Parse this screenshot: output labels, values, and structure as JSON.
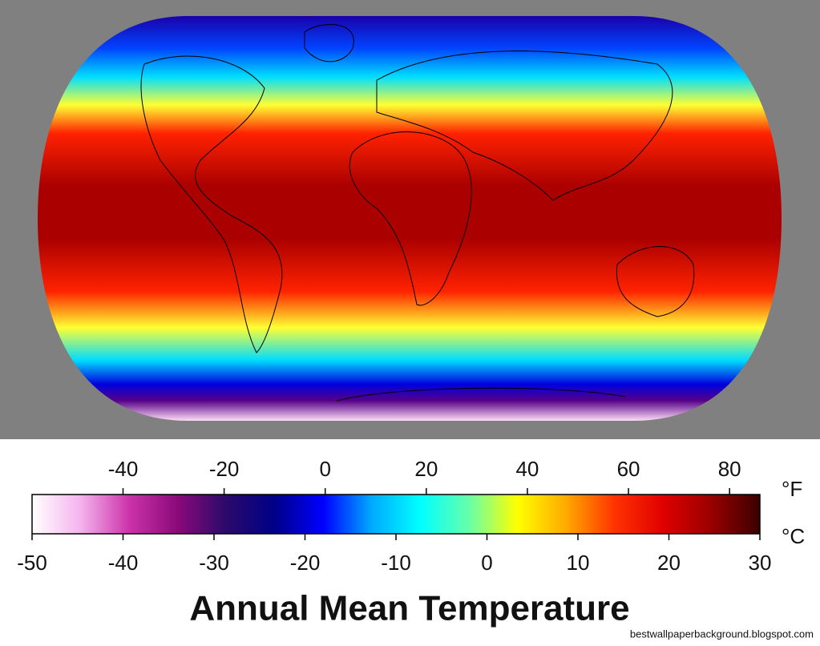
{
  "title": "Annual Mean Temperature",
  "colorbar": {
    "celsius": {
      "unit": "°C",
      "lim": [
        -50,
        30
      ],
      "ticks": [
        -50,
        -40,
        -30,
        -20,
        -10,
        0,
        10,
        20,
        30
      ]
    },
    "fahrenheit": {
      "unit": "°F",
      "lim": [
        -58,
        86
      ],
      "ticks": [
        -40,
        -20,
        0,
        20,
        40,
        60,
        80
      ]
    },
    "colors": [
      "#ffffff",
      "#f5b3ee",
      "#cc33aa",
      "#8a0a7a",
      "#2a0a6a",
      "#000088",
      "#0000ff",
      "#00aaff",
      "#00ffff",
      "#66ffaa",
      "#ffff00",
      "#ffaa00",
      "#ff3300",
      "#e00000",
      "#990000",
      "#3a0000"
    ]
  },
  "watermark": "bestwallpaperbackground.blogspot.com"
}
